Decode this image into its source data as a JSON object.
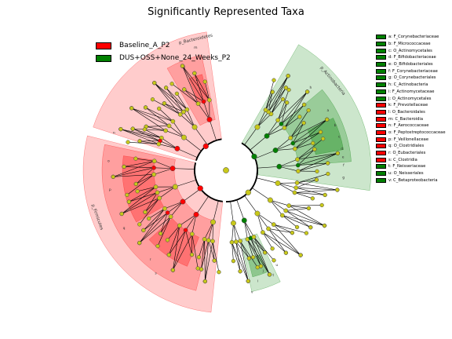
{
  "title": "Significantly Represented Taxa",
  "colors": {
    "baseline": "#ff0000",
    "dus": "#008000",
    "node_default": "#c8c81a",
    "node_outline": "#444444",
    "edge": "#000000",
    "red_sector": "#ff0000",
    "green_sector": "#008000"
  },
  "groups": [
    {
      "label": "Baseline_A_P2",
      "color": "#ff0000"
    },
    {
      "label": "DUS+OSS+None_24_Weeks_P2",
      "color": "#008000"
    }
  ],
  "clade_legend": [
    {
      "text": "a: F_Corynebacteriaceae",
      "color": "#008000"
    },
    {
      "text": "b: F_Micrococcaceae",
      "color": "#008000"
    },
    {
      "text": "c: O_Actinomycetales",
      "color": "#008000"
    },
    {
      "text": "d: F_Bifidobacteriaceae",
      "color": "#008000"
    },
    {
      "text": "e: O_Bifidobacteriales",
      "color": "#008000"
    },
    {
      "text": "f: F_Corynebacteriaceae",
      "color": "#008000"
    },
    {
      "text": "g: O_Corynebacteriales",
      "color": "#008000"
    },
    {
      "text": "h: C_Actinobacteria",
      "color": "#008000"
    },
    {
      "text": "i: F_Actinomycetaceae",
      "color": "#008000"
    },
    {
      "text": "j: O_Actinomycetales",
      "color": "#008000"
    },
    {
      "text": "k: F_Prevotellaceae",
      "color": "#ff0000"
    },
    {
      "text": "l: O_Bacteroidales",
      "color": "#ff0000"
    },
    {
      "text": "m: C_Bacteroidia",
      "color": "#ff0000"
    },
    {
      "text": "n: F_Aerococcaceae",
      "color": "#ff0000"
    },
    {
      "text": "o: F_Peptostreptococcaceae",
      "color": "#ff0000"
    },
    {
      "text": "p: F_Veillonellaceae",
      "color": "#ff0000"
    },
    {
      "text": "q: O_Clostridiales",
      "color": "#ff0000"
    },
    {
      "text": "r: O_Eubacteriales",
      "color": "#ff0000"
    },
    {
      "text": "s: C_Clostridia",
      "color": "#ff0000"
    },
    {
      "text": "t: F_Neisseriaceae",
      "color": "#008000"
    },
    {
      "text": "u: O_Neisseriales",
      "color": "#008000"
    },
    {
      "text": "v: C_Betaproteobacteria",
      "color": "#008000"
    }
  ],
  "sector_labels": {
    "bacteroidetes": "p_Bacteroidetes",
    "actinobacteria": "p_Actinobacteria",
    "firmicutes": "p_Firmicutes"
  },
  "letters": [
    "a",
    "b",
    "c",
    "d",
    "e",
    "f",
    "g",
    "h",
    "i",
    "j",
    "k",
    "l",
    "m",
    "n",
    "o",
    "p",
    "q",
    "r",
    "s",
    "t",
    "u",
    "v"
  ]
}
